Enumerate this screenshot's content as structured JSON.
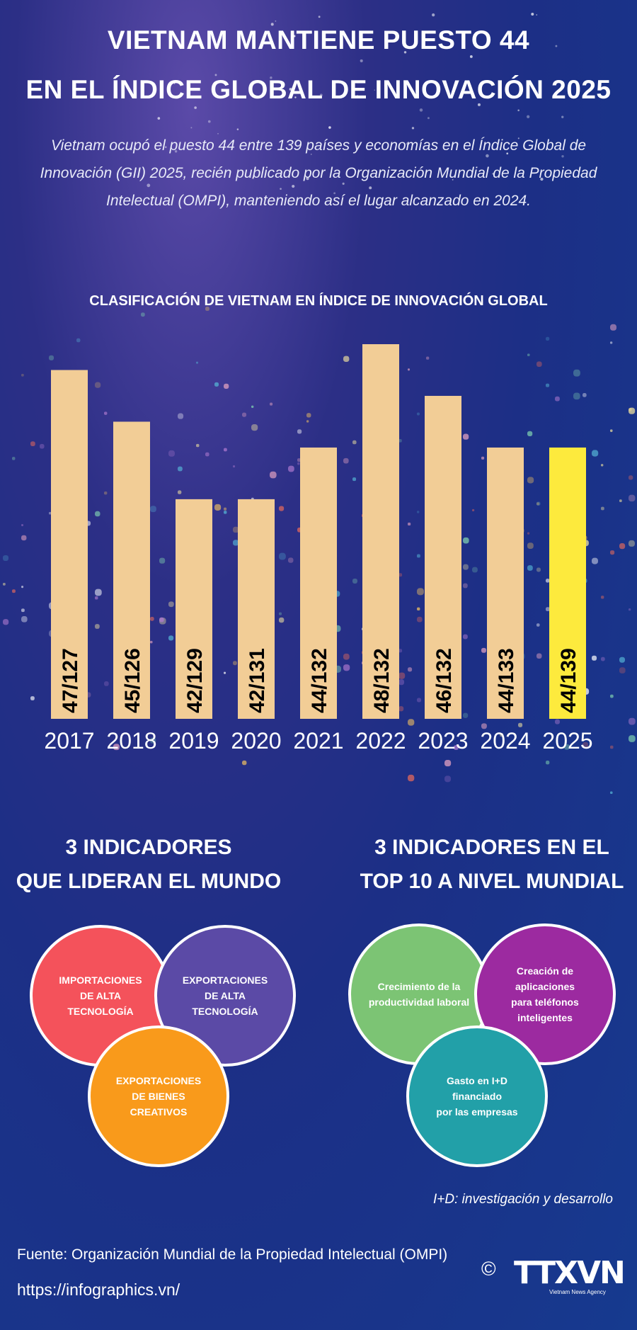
{
  "title_line1": "VIETNAM MANTIENE PUESTO 44",
  "title_line2": "EN EL ÍNDICE GLOBAL DE INNOVACIÓN 2025",
  "intro": {
    "line1": "Vietnam ocupó el puesto 44 entre 139 países y economías en el Índice Global de",
    "line2": "Innovación (GII) 2025, recién publicado por la Organización Mundial de la Propiedad",
    "line3": "Intelectual (OMPI), manteniendo así el lugar alcanzado en 2024."
  },
  "chart_data": {
    "type": "bar",
    "title": "CLASIFICACIÓN DE VIETNAM EN ÍNDICE DE INNOVACIÓN GLOBAL",
    "categories": [
      "2017",
      "2018",
      "2019",
      "2020",
      "2021",
      "2022",
      "2023",
      "2024",
      "2025"
    ],
    "values": [
      47,
      45,
      42,
      42,
      44,
      48,
      46,
      44,
      44
    ],
    "labels": [
      "47/127",
      "45/126",
      "42/129",
      "42/131",
      "44/132",
      "48/132",
      "46/132",
      "44/133",
      "44/139"
    ],
    "ylim": [
      40,
      48
    ],
    "grid": false,
    "colors": {
      "bar": "#f2cd96",
      "highlight": "#fdea3d",
      "highlight_index": 8
    }
  },
  "left_section": {
    "title_line1": "3 INDICADORES",
    "title_line2": "QUE LIDERAN EL MUNDO",
    "circles": [
      {
        "line1": "IMPORTACIONES",
        "line2": "DE ALTA TECNOLOGÍA",
        "color": "#f4525b"
      },
      {
        "line1": "EXPORTACIONES",
        "line2": "DE ALTA TECNOLOGÍA",
        "color": "#5b4aa6"
      },
      {
        "line1": "EXPORTACIONES",
        "line2": "DE BIENES CREATIVOS",
        "color": "#f99a1b"
      }
    ]
  },
  "right_section": {
    "title_line1": "3 INDICADORES EN EL",
    "title_line2": "TOP 10 A NIVEL MUNDIAL",
    "circles": [
      {
        "line1": "Crecimiento de la",
        "line2": "productividad laboral",
        "color": "#7cc474"
      },
      {
        "line1": "Creación de aplicaciones",
        "line2": "para teléfonos inteligentes",
        "color": "#9c2aa0"
      },
      {
        "line1": "Gasto en I+D financiado",
        "line2": "por las empresas",
        "color": "#22a0a8"
      }
    ]
  },
  "note": "I+D: investigación y desarrollo",
  "source": "Fuente: Organización Mundial de la Propiedad Intelectual (OMPI)",
  "url": "https://infographics.vn/",
  "logo": {
    "copyright": "©",
    "text": "TTXVN",
    "subtitle": "Vietnam News Agency"
  }
}
